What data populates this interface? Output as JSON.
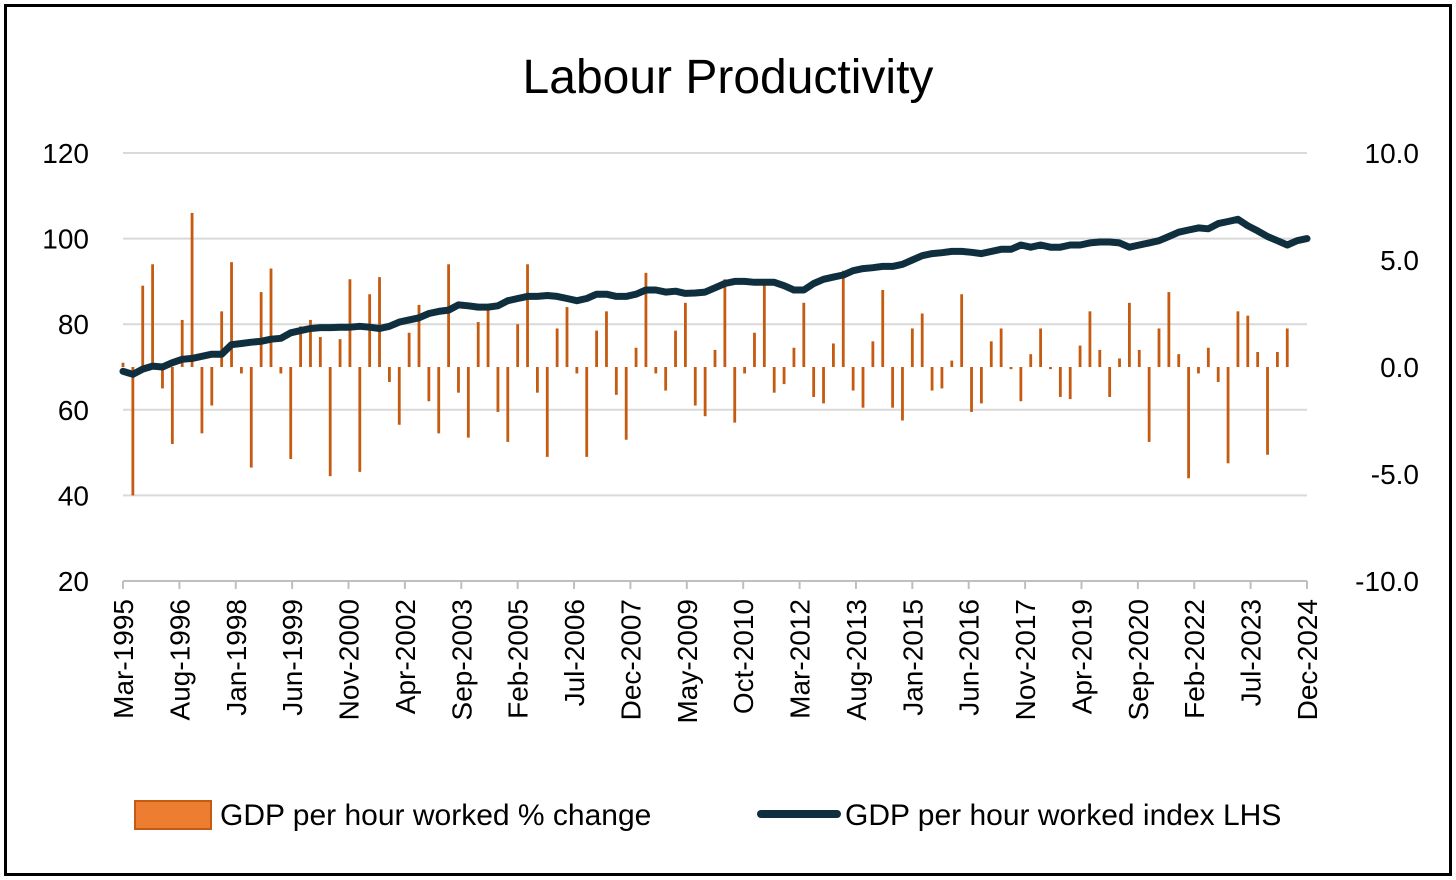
{
  "chart_data": {
    "type": "bar+line",
    "title": "Labour Productivity",
    "x_tick_labels": [
      "Mar-1995",
      "Aug-1996",
      "Jan-1998",
      "Jun-1999",
      "Nov-2000",
      "Apr-2002",
      "Sep-2003",
      "Feb-2005",
      "Jul-2006",
      "Dec-2007",
      "May-2009",
      "Oct-2010",
      "Mar-2012",
      "Aug-2013",
      "Jan-2015",
      "Jun-2016",
      "Nov-2017",
      "Apr-2019",
      "Sep-2020",
      "Feb-2022",
      "Jul-2023",
      "Dec-2024"
    ],
    "left_axis": {
      "ylim": [
        20,
        120
      ],
      "ticks": [
        "20",
        "40",
        "60",
        "80",
        "100",
        "120"
      ]
    },
    "right_axis": {
      "ylim": [
        -10,
        10
      ],
      "ticks": [
        "-10.0",
        "-5.0",
        "0.0",
        "5.0",
        "10.0"
      ]
    },
    "grid": true,
    "legend": {
      "position": "bottom",
      "entries": [
        "GDP per hour worked % change",
        "GDP per hour worked index LHS"
      ]
    },
    "colors": {
      "bars": "#c55a11",
      "line": "#0f2f3f",
      "grid": "#d9d9d9"
    },
    "series": [
      {
        "name": "GDP per hour worked % change",
        "type": "bar",
        "axis": "right",
        "values": [
          0.2,
          -6,
          3.8,
          4.8,
          -1,
          -3.6,
          2.2,
          7.2,
          -3.1,
          -1.8,
          2.6,
          4.9,
          -0.3,
          -4.7,
          3.5,
          4.6,
          -0.3,
          -4.3,
          1.9,
          2.2,
          1.4,
          -5.1,
          1.3,
          4.1,
          -4.9,
          3.4,
          4.2,
          -0.7,
          -2.7,
          1.6,
          2.9,
          -1.6,
          -3.1,
          4.8,
          -1.2,
          -3.3,
          2.1,
          2.9,
          -2.1,
          -3.5,
          2,
          4.8,
          -1.2,
          -4.2,
          1.8,
          2.8,
          -0.3,
          -4.2,
          1.7,
          2.6,
          -1.3,
          -3.4,
          0.9,
          4.4,
          -0.3,
          -1.1,
          1.7,
          3,
          -1.8,
          -2.3,
          0.8,
          4.1,
          -2.6,
          -0.3,
          1.6,
          3.9,
          -1.2,
          -0.8,
          0.9,
          3,
          -1.4,
          -1.7,
          1.1,
          4.5,
          -1.1,
          -1.9,
          1.2,
          3.6,
          -1.9,
          -2.5,
          1.8,
          2.5,
          -1.1,
          -1,
          0.3,
          3.4,
          -2.1,
          -1.7,
          1.2,
          1.8,
          -0.1,
          -1.6,
          0.6,
          1.8,
          -0.1,
          -1.4,
          -1.5,
          1,
          2.6,
          0.8,
          -1.4,
          0.4,
          3,
          0.8,
          -3.5,
          1.8,
          3.5,
          0.6,
          -5.2,
          -0.3,
          0.9,
          -0.7,
          -4.5,
          2.6,
          2.4,
          0.7,
          -4.1,
          0.7,
          1.8
        ]
      },
      {
        "name": "GDP per hour worked index LHS",
        "type": "line",
        "axis": "left",
        "values": [
          69,
          68.3,
          69.5,
          70.2,
          70,
          71,
          71.8,
          72,
          72.5,
          73,
          73,
          75.2,
          75.5,
          75.8,
          76,
          76.5,
          76.7,
          78,
          78.5,
          79,
          79.2,
          79.2,
          79.3,
          79.3,
          79.5,
          79.3,
          79,
          79.5,
          80.5,
          81,
          81.5,
          82.5,
          83,
          83.3,
          84.5,
          84.3,
          84,
          84,
          84.3,
          85.5,
          86,
          86.5,
          86.5,
          86.7,
          86.5,
          86,
          85.5,
          86,
          87,
          87,
          86.5,
          86.5,
          87,
          88,
          88,
          87.5,
          87.7,
          87.2,
          87.3,
          87.5,
          88.5,
          89.5,
          90,
          90,
          89.8,
          89.8,
          89.8,
          89,
          88,
          88,
          89.5,
          90.5,
          91,
          91.5,
          92.5,
          93,
          93.2,
          93.5,
          93.5,
          94,
          95,
          96,
          96.5,
          96.7,
          97,
          97,
          96.8,
          96.5,
          97,
          97.5,
          97.5,
          98.5,
          98,
          98.5,
          98,
          98,
          98.5,
          98.5,
          99,
          99.2,
          99.2,
          99,
          98,
          98.5,
          99,
          99.5,
          100.5,
          101.5,
          102,
          102.5,
          102.3,
          103.5,
          104,
          104.5,
          103,
          101.8,
          100.5,
          99.5,
          98.5,
          99.5,
          100
        ]
      }
    ]
  }
}
